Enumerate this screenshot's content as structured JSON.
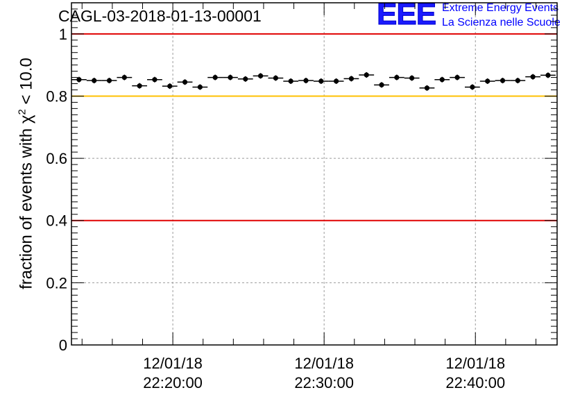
{
  "title": "CAGL-03-2018-01-13-00001",
  "logo": {
    "mark": "EEE",
    "line1": "Extreme Energy Events",
    "line2": "La Scienza nelle Scuole",
    "color": "#0000ff"
  },
  "chart_data": {
    "type": "scatter",
    "title": "CAGL-03-2018-01-13-00001",
    "ylabel_prefix": "fraction of events with ",
    "ylabel_symbol": "χ",
    "ylabel_sup": "2",
    "ylabel_suffix": " < 10.0",
    "ylim": [
      0,
      1.1
    ],
    "xlim_minutes": [
      13.3,
      45.4
    ],
    "y_ticks": [
      "0",
      "0.2",
      "0.4",
      "0.6",
      "0.8",
      "1"
    ],
    "x_ticks": [
      {
        "minute": 20,
        "date": "12/01/18",
        "time": "22:20:00"
      },
      {
        "minute": 30,
        "date": "12/01/18",
        "time": "22:30:00"
      },
      {
        "minute": 40,
        "date": "12/01/18",
        "time": "22:40:00"
      }
    ],
    "grid": true,
    "reference_lines": [
      {
        "y": 1.0,
        "color": "#e00000"
      },
      {
        "y": 0.8,
        "color": "#ffc000"
      },
      {
        "y": 0.4,
        "color": "#e00000"
      }
    ],
    "series": [
      {
        "bin_width_minutes": 1,
        "x_minutes": [
          13.8,
          14.8,
          15.8,
          16.8,
          17.8,
          18.8,
          19.8,
          20.8,
          21.8,
          22.8,
          23.8,
          24.8,
          25.8,
          26.8,
          27.8,
          28.8,
          29.8,
          30.8,
          31.8,
          32.8,
          33.8,
          34.8,
          35.8,
          36.8,
          37.8,
          38.8,
          39.8,
          40.8,
          41.8,
          42.8,
          43.8,
          44.8
        ],
        "values": [
          0.853,
          0.85,
          0.85,
          0.86,
          0.833,
          0.853,
          0.832,
          0.845,
          0.829,
          0.86,
          0.86,
          0.855,
          0.865,
          0.858,
          0.848,
          0.85,
          0.848,
          0.848,
          0.856,
          0.868,
          0.836,
          0.86,
          0.858,
          0.826,
          0.853,
          0.86,
          0.829,
          0.848,
          0.85,
          0.85,
          0.862,
          0.867
        ],
        "color": "#000000"
      }
    ]
  }
}
